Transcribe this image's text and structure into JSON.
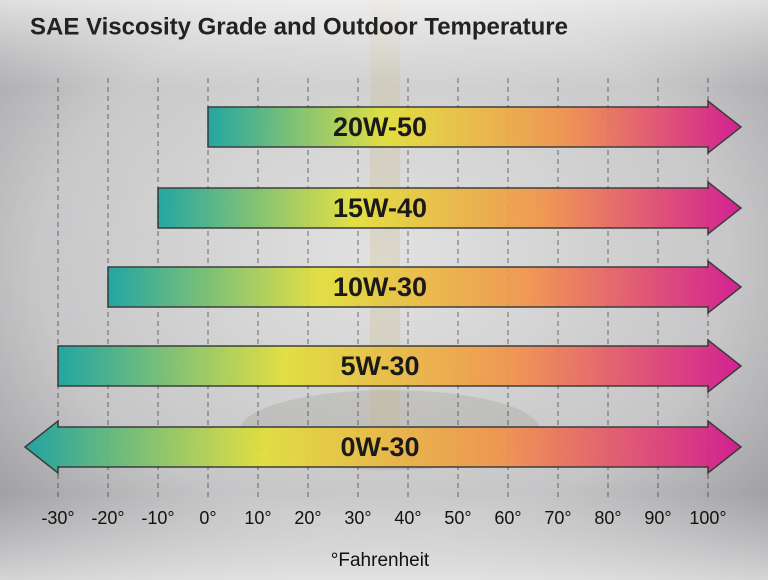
{
  "chart_data": {
    "type": "range",
    "title": "SAE Viscosity Grade and Outdoor Temperature",
    "x_label": "°Fahrenheit",
    "categories": [
      "20W-50",
      "15W-40",
      "10W-30",
      "5W-30",
      "0W-30"
    ],
    "low": [
      0,
      -10,
      -20,
      -30,
      -30
    ],
    "high": [
      100,
      100,
      100,
      100,
      100
    ],
    "open_low": [
      false,
      false,
      false,
      false,
      true
    ],
    "open_high": [
      true,
      true,
      true,
      true,
      true
    ],
    "xlim": [
      -30,
      100
    ],
    "xticks": [
      {
        "value": -30,
        "label": "-30°"
      },
      {
        "value": -20,
        "label": "-20°"
      },
      {
        "value": -10,
        "label": "-10°"
      },
      {
        "value": 0,
        "label": "0°"
      },
      {
        "value": 10,
        "label": "10°"
      },
      {
        "value": 20,
        "label": "20°"
      },
      {
        "value": 30,
        "label": "30°"
      },
      {
        "value": 40,
        "label": "40°"
      },
      {
        "value": 50,
        "label": "50°"
      },
      {
        "value": 60,
        "label": "60°"
      },
      {
        "value": 70,
        "label": "70°"
      },
      {
        "value": 80,
        "label": "80°"
      },
      {
        "value": 90,
        "label": "90°"
      },
      {
        "value": 100,
        "label": "100°"
      }
    ],
    "grid": true,
    "gradient": [
      "#17a3a0",
      "#e3e03a",
      "#f2934c",
      "#d4168f"
    ]
  }
}
